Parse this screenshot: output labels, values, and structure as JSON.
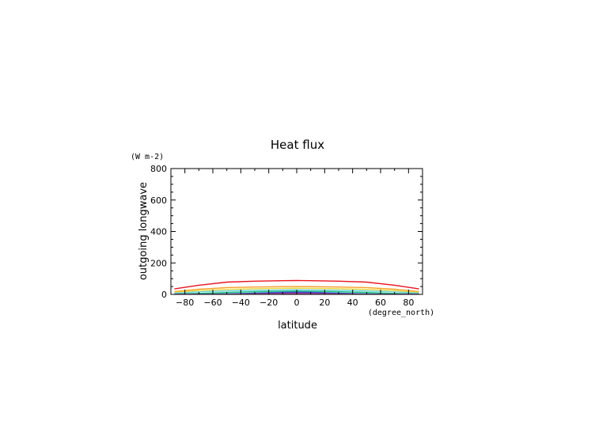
{
  "chart_data": {
    "type": "line",
    "title": "Heat flux",
    "xlabel": "latitude",
    "x_units": "(degree_north)",
    "ylabel": "outgoing longwave",
    "y_units": "(W m-2)",
    "xlim": [
      -90,
      90
    ],
    "ylim": [
      0,
      800
    ],
    "x_major_ticks": [
      -80,
      -60,
      -40,
      -20,
      0,
      20,
      40,
      60,
      80
    ],
    "x_tick_labels": [
      "−80",
      "−60",
      "−40",
      "−20",
      "0",
      "20",
      "40",
      "60",
      "80"
    ],
    "y_major_ticks": [
      0,
      200,
      400,
      600,
      800
    ],
    "y_tick_labels": [
      "0",
      "200",
      "400",
      "600",
      "800"
    ],
    "grid": false,
    "x": [
      -87.5,
      -70,
      -50,
      -30,
      -10,
      0,
      10,
      30,
      50,
      70,
      87.5
    ],
    "series": [
      {
        "color": "#e8141e",
        "values": [
          35,
          58,
          78,
          84,
          87,
          88,
          87,
          84,
          78,
          58,
          35
        ]
      },
      {
        "color": "#f7a02a",
        "values": [
          18,
          33,
          43,
          47,
          49,
          50,
          49,
          47,
          43,
          33,
          18
        ]
      },
      {
        "color": "#e8d840",
        "values": [
          13,
          24,
          32,
          36,
          38,
          39,
          38,
          36,
          32,
          24,
          13
        ]
      },
      {
        "color": "#6ccfe0",
        "values": [
          8,
          16,
          22,
          26,
          28,
          29,
          28,
          26,
          22,
          16,
          8
        ]
      },
      {
        "color": "#19c27a",
        "values": [
          2,
          6,
          12,
          17,
          20,
          21,
          20,
          17,
          12,
          6,
          2
        ]
      },
      {
        "color": "#2a6be0",
        "values": [
          0,
          1,
          3,
          8,
          14,
          15,
          14,
          8,
          3,
          1,
          0
        ]
      },
      {
        "color": "#4a2ca8",
        "values": [
          0,
          0,
          1,
          4,
          9,
          10,
          9,
          4,
          1,
          0,
          0
        ]
      },
      {
        "color": "#b84a9a",
        "values": [
          0,
          0,
          0,
          2,
          5,
          6,
          5,
          2,
          0,
          0,
          0
        ]
      }
    ]
  }
}
